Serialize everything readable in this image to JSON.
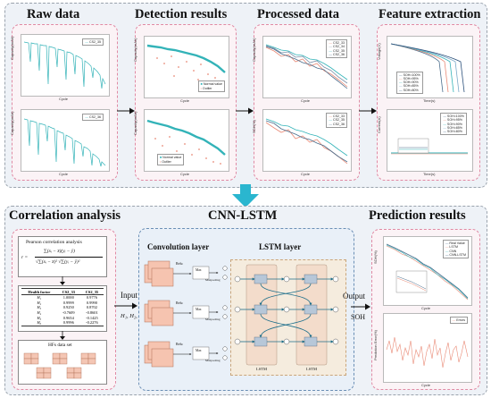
{
  "top": {
    "raw_data": {
      "heading": "Raw data",
      "plot1_legend": "CS2_35",
      "plot2_legend": "CS2_36",
      "ylabel": "Capacity(mAh)",
      "xlabel": "Cycle"
    },
    "detection": {
      "heading": "Detection results",
      "legend_normal": "Normal value",
      "legend_outlier": "Outlier",
      "ylabel": "Capacity(mAh)",
      "xlabel": "Cycle"
    },
    "processed": {
      "heading": "Processed data",
      "plot1_legend": [
        "CS2_33",
        "CS2_34",
        "CS2_35",
        "CS2_36"
      ],
      "plot1_ylabel": "Capacity(mAh)",
      "plot2_legend": [
        "CS2_33",
        "CS2_35",
        "CS2_36"
      ],
      "plot2_ylabel": "SOH(%)",
      "xlabel": "Cycle"
    },
    "feature": {
      "heading": "Feature extraction",
      "plot1_legend": [
        "SOH=100%",
        "SOH=95%",
        "SOH=90%",
        "SOH=85%",
        "SOH=80%"
      ],
      "plot1_ylabel": "Voltage(V)",
      "plot2_legend": [
        "SOH=100%",
        "SOH=95%",
        "SOH=90%",
        "SOH=85%",
        "SOH=80%"
      ],
      "plot2_ylabel": "Current(A)",
      "xlabel": "Time(s)"
    }
  },
  "center": {
    "title": "CNN-LSTM"
  },
  "bottom": {
    "correlation": {
      "heading": "Correlation analysis",
      "pearson_title": "Pearson correlation analysis",
      "formula_lhs": "r =",
      "formula_num": "∑(xᵢ − x̄)(yᵢ − ȳ)",
      "formula_den": "√∑(xᵢ − x̄)² √∑(yᵢ − ȳ)²",
      "table_headers": [
        "Health factor",
        "CS2_33",
        "CS2_35"
      ],
      "table_rows": [
        [
          "H₁",
          "1.0000",
          "0.9776"
        ],
        [
          "H₂",
          "0.9999",
          "0.9990"
        ],
        [
          "H₃",
          "0.9250",
          "0.8702"
        ],
        [
          "H₄",
          "-0.7609",
          "-0.8601"
        ],
        [
          "H₅",
          "0.9654",
          "-0.1425"
        ],
        [
          "H₆",
          "0.9996",
          "-0.2276"
        ]
      ],
      "dataset_label": "HFs data set"
    },
    "cnn": {
      "input_label": "Input",
      "input_vars": "H₁, H₂, H₃",
      "conv_title": "Convolution layer",
      "lstm_title": "LSTM layer",
      "relu": "Relu",
      "max": "Max",
      "maxpooling": "Maxpooling",
      "lstm_block": "LSTM",
      "output_label": "Output",
      "output_var": "SOH"
    },
    "prediction": {
      "heading": "Prediction results",
      "plot1_legend": [
        "Real Value",
        "LSTM",
        "CNN",
        "CNN-LSTM"
      ],
      "plot1_ylabel": "SOH(%)",
      "plot2_legend": [
        "Errors"
      ],
      "plot2_ylabel": "Prediction Error(%)",
      "xlabel": "Cycle"
    }
  },
  "colors": {
    "teal": "#33b3b8",
    "outlier": "#e98a76",
    "panel_border": "#e08aa4",
    "outer_border": "#9aa3ad",
    "arrow_cyan": "#2ab6cf"
  }
}
